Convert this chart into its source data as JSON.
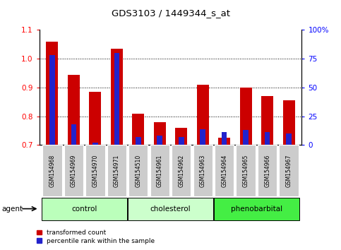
{
  "title": "GDS3103 / 1449344_s_at",
  "samples": [
    "GSM154968",
    "GSM154969",
    "GSM154970",
    "GSM154971",
    "GSM154510",
    "GSM154961",
    "GSM154962",
    "GSM154963",
    "GSM154964",
    "GSM154965",
    "GSM154966",
    "GSM154967"
  ],
  "transformed_count": [
    1.06,
    0.945,
    0.885,
    1.035,
    0.81,
    0.78,
    0.76,
    0.91,
    0.725,
    0.9,
    0.87,
    0.855
  ],
  "percentile_rank": [
    78,
    18,
    2,
    80,
    7,
    8,
    7,
    14,
    11,
    13,
    11,
    10
  ],
  "ylim_left": [
    0.7,
    1.1
  ],
  "ylim_right": [
    0,
    100
  ],
  "yticks_left": [
    0.7,
    0.8,
    0.9,
    1.0,
    1.1
  ],
  "yticks_right": [
    0,
    25,
    50,
    75,
    100
  ],
  "ytick_labels_right": [
    "0",
    "25",
    "50",
    "75",
    "100%"
  ],
  "bar_color_red": "#cc0000",
  "bar_color_blue": "#2222cc",
  "groups": [
    {
      "label": "control",
      "indices": [
        0,
        1,
        2,
        3
      ],
      "color": "#bbffbb"
    },
    {
      "label": "cholesterol",
      "indices": [
        4,
        5,
        6,
        7
      ],
      "color": "#ccffcc"
    },
    {
      "label": "phenobarbital",
      "indices": [
        8,
        9,
        10,
        11
      ],
      "color": "#44ee44"
    }
  ],
  "agent_label": "agent",
  "legend_red": "transformed count",
  "legend_blue": "percentile rank within the sample",
  "bar_width": 0.55,
  "tick_bg_color": "#cccccc",
  "grid_color": "#000000"
}
